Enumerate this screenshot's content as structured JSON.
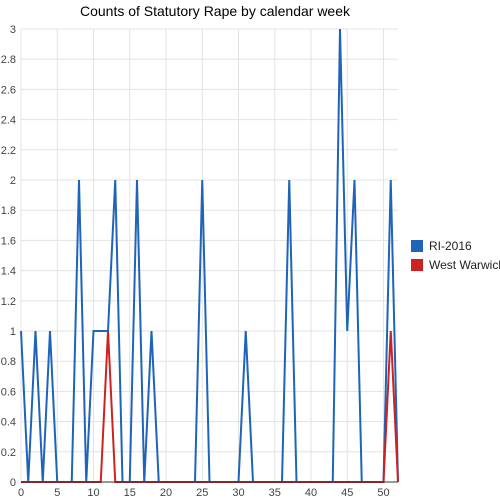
{
  "chart_data": {
    "type": "line",
    "title": "Counts of Statutory Rape by calendar week",
    "xlabel": "",
    "ylabel": "",
    "xlim": [
      0,
      52
    ],
    "ylim": [
      0,
      3
    ],
    "x_ticks": [
      0,
      5,
      10,
      15,
      20,
      25,
      30,
      35,
      40,
      45,
      50
    ],
    "y_ticks": [
      0,
      0.2,
      0.4,
      0.6,
      0.8,
      1,
      1.2,
      1.4,
      1.6,
      1.8,
      2,
      2.2,
      2.4,
      2.6,
      2.8,
      3
    ],
    "grid": true,
    "legend": "right",
    "x": [
      0,
      1,
      2,
      3,
      4,
      5,
      6,
      7,
      8,
      9,
      10,
      11,
      12,
      13,
      14,
      15,
      16,
      17,
      18,
      19,
      20,
      21,
      22,
      23,
      24,
      25,
      26,
      27,
      28,
      29,
      30,
      31,
      32,
      33,
      34,
      35,
      36,
      37,
      38,
      39,
      40,
      41,
      42,
      43,
      44,
      45,
      46,
      47,
      48,
      49,
      50,
      51,
      52
    ],
    "series": [
      {
        "name": "RI-2016",
        "color": "#1f64b8",
        "values": [
          1,
          0,
          1,
          0,
          1,
          0,
          0,
          0,
          2,
          0,
          1,
          1,
          1,
          2,
          0,
          0,
          2,
          0,
          1,
          0,
          0,
          0,
          0,
          0,
          0,
          2,
          0,
          0,
          0,
          0,
          0,
          1,
          0,
          0,
          0,
          0,
          0,
          2,
          0,
          0,
          0,
          0,
          0,
          0,
          3,
          1,
          2,
          0,
          0,
          0,
          0,
          2,
          0
        ]
      },
      {
        "name": "West Warwick",
        "color": "#cc2222",
        "values": [
          0,
          0,
          0,
          0,
          0,
          0,
          0,
          0,
          0,
          0,
          0,
          0,
          1,
          0,
          0,
          0,
          0,
          0,
          0,
          0,
          0,
          0,
          0,
          0,
          0,
          0,
          0,
          0,
          0,
          0,
          0,
          0,
          0,
          0,
          0,
          0,
          0,
          0,
          0,
          0,
          0,
          0,
          0,
          0,
          0,
          0,
          0,
          0,
          0,
          0,
          0,
          1,
          0
        ]
      }
    ]
  }
}
